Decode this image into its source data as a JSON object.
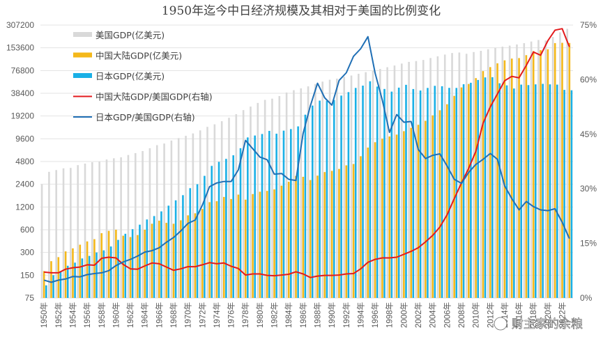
{
  "chart_data": {
    "type": "bar",
    "title": "1950年迄今中日经济规模及其相对于美国的比例变化",
    "left_axis": {
      "scale": "log2",
      "ticks": [
        "75",
        "150",
        "300",
        "600",
        "1200",
        "2400",
        "4800",
        "9600",
        "19200",
        "38400",
        "76800",
        "153600",
        "307200"
      ],
      "range": [
        75,
        307200
      ]
    },
    "right_axis": {
      "ticks": [
        "0%",
        "15%",
        "30%",
        "45%",
        "60%",
        "75%"
      ],
      "range": [
        0,
        75
      ]
    },
    "grid": true,
    "legend_position": "top-left",
    "x": [
      1950,
      1951,
      1952,
      1953,
      1954,
      1955,
      1956,
      1957,
      1958,
      1959,
      1960,
      1961,
      1962,
      1963,
      1964,
      1965,
      1966,
      1967,
      1968,
      1969,
      1970,
      1971,
      1972,
      1973,
      1974,
      1975,
      1976,
      1977,
      1978,
      1979,
      1980,
      1981,
      1982,
      1983,
      1984,
      1985,
      1986,
      1987,
      1988,
      1989,
      1990,
      1991,
      1992,
      1993,
      1994,
      1995,
      1996,
      1997,
      1998,
      1999,
      2000,
      2001,
      2002,
      2003,
      2004,
      2005,
      2006,
      2007,
      2008,
      2009,
      2010,
      2011,
      2012,
      2013,
      2014,
      2015,
      2016,
      2017,
      2018,
      2019,
      2020,
      2021,
      2022,
      2023
    ],
    "x_tick_labels": [
      "1950年",
      "1952年",
      "1954年",
      "1956年",
      "1958年",
      "1960年",
      "1962年",
      "1964年",
      "1966年",
      "1968年",
      "1970年",
      "1972年",
      "1974年",
      "1976年",
      "1978年",
      "1980年",
      "1982年",
      "1984年",
      "1986年",
      "1988年",
      "1990年",
      "1992年",
      "1994年",
      "1996年",
      "1998年",
      "2000年",
      "2002年",
      "2004年",
      "2006年",
      "2008年",
      "2010年",
      "2012年",
      "2014年",
      "2016年",
      "2018年",
      "2020年",
      "2022年"
    ],
    "series": [
      {
        "name": "美国GDP(亿美元)",
        "kind": "bar",
        "axis": "left",
        "color": "#d9d9d9",
        "values": [
          2400,
          3500,
          3700,
          3900,
          3950,
          4300,
          4500,
          4700,
          4800,
          5100,
          5300,
          5450,
          5850,
          6200,
          6600,
          7200,
          7900,
          8300,
          9100,
          9800,
          10500,
          11300,
          12400,
          13800,
          14900,
          16400,
          18200,
          20300,
          23000,
          25600,
          28600,
          31400,
          32600,
          35300,
          39300,
          42200,
          44600,
          47400,
          51000,
          54800,
          58000,
          60000,
          63400,
          66000,
          69600,
          73000,
          76400,
          80600,
          85000,
          89500,
          95000,
          100000,
          102500,
          106000,
          112500,
          118500,
          125000,
          131000,
          133000,
          128000,
          135000,
          140000,
          147000,
          153000,
          159000,
          164000,
          170000,
          177000,
          186000,
          195000,
          192000,
          214000,
          246000,
          274000
        ]
      },
      {
        "name": "中国大陆GDP(亿美元)",
        "kind": "bar",
        "axis": "left",
        "color": "#f4b81a",
        "values": [
          170,
          230,
          260,
          310,
          340,
          380,
          420,
          450,
          540,
          580,
          600,
          500,
          480,
          510,
          600,
          720,
          790,
          740,
          720,
          800,
          930,
          990,
          1130,
          1390,
          1430,
          1630,
          1530,
          1750,
          1500,
          1780,
          1910,
          1960,
          2050,
          2300,
          2590,
          3090,
          3010,
          2730,
          3120,
          3480,
          3610,
          3830,
          4270,
          4450,
          5640,
          7340,
          8640,
          9620,
          10300,
          10900,
          12100,
          13400,
          14700,
          16600,
          19600,
          22900,
          27500,
          35500,
          45900,
          51000,
          61000,
          75500,
          85300,
          95700,
          104800,
          110600,
          112300,
          122700,
          138900,
          142800,
          146900,
          177300,
          178800,
          178000
        ]
      },
      {
        "name": "日本GDP(亿美元)",
        "kind": "bar",
        "axis": "left",
        "color": "#1ab0e6",
        "values": [
          110,
          150,
          170,
          200,
          220,
          250,
          270,
          300,
          320,
          360,
          440,
          530,
          610,
          700,
          820,
          910,
          1050,
          1250,
          1470,
          1720,
          2130,
          2400,
          3100,
          4200,
          4750,
          5200,
          5800,
          7200,
          10000,
          10600,
          11100,
          12200,
          11200,
          12300,
          12900,
          14000,
          20000,
          26400,
          30700,
          30500,
          31300,
          35800,
          39800,
          45200,
          48500,
          55400,
          47100,
          43800,
          40400,
          45600,
          49700,
          43700,
          41800,
          45200,
          48200,
          47600,
          45300,
          45200,
          50600,
          52900,
          57600,
          62300,
          62700,
          52100,
          48900,
          44400,
          50000,
          49300,
          50400,
          51200,
          50400,
          50000,
          42600,
          42100
        ]
      },
      {
        "name": "中国大陆GDP/美国GDP(右轴)",
        "kind": "line",
        "axis": "right",
        "color": "#e31a1c",
        "values": [
          7.1,
          6.9,
          6.9,
          7.9,
          8.3,
          8.5,
          9.1,
          9.0,
          10.9,
          11.2,
          11.0,
          9.2,
          8.0,
          7.9,
          8.8,
          9.6,
          9.4,
          8.5,
          7.6,
          8.0,
          8.6,
          8.6,
          9.1,
          9.7,
          9.4,
          9.6,
          8.7,
          8.1,
          6.3,
          6.6,
          6.6,
          6.2,
          6.1,
          6.3,
          6.5,
          7.2,
          6.6,
          5.6,
          6.0,
          6.2,
          6.2,
          6.3,
          6.6,
          6.7,
          8.0,
          9.8,
          10.6,
          11.0,
          11.0,
          11.2,
          12.0,
          12.8,
          13.8,
          15.4,
          17.2,
          19.5,
          22.8,
          27.3,
          31.6,
          35.6,
          40.3,
          48.0,
          52.5,
          56.1,
          59.7,
          60.9,
          60.5,
          63.9,
          67.6,
          66.7,
          70.7,
          73.6,
          74.0,
          69.0
        ]
      },
      {
        "name": "日本GDP/美国GDP(右轴)",
        "kind": "line",
        "axis": "right",
        "color": "#1f6fb5",
        "values": [
          4.9,
          4.3,
          4.9,
          5.2,
          5.9,
          5.8,
          6.4,
          6.7,
          6.9,
          7.5,
          8.9,
          9.9,
          10.6,
          11.5,
          12.6,
          13.0,
          13.8,
          15.3,
          16.6,
          18.4,
          20.5,
          21.4,
          25.5,
          30.6,
          31.6,
          32.0,
          32.0,
          35.2,
          43.3,
          41.0,
          38.7,
          38.0,
          34.0,
          34.2,
          32.6,
          32.3,
          45.2,
          52.8,
          59.0,
          55.0,
          53.0,
          59.8,
          61.9,
          66.4,
          68.5,
          71.8,
          61.8,
          54.4,
          45.5,
          50.4,
          48.3,
          48.5,
          40.8,
          38.3,
          39.2,
          39.6,
          36.3,
          32.6,
          31.5,
          34.5,
          36.7,
          38.1,
          39.7,
          38.1,
          30.8,
          27.3,
          24.2,
          26.5,
          25.1,
          24.2,
          24.0,
          24.5,
          20.8,
          16.3
        ]
      }
    ]
  },
  "legend": [
    {
      "label": "美国GDP(亿美元)",
      "kind": "bar",
      "color": "#d9d9d9"
    },
    {
      "label": "中国大陆GDP(亿美元)",
      "kind": "bar",
      "color": "#f4b81a"
    },
    {
      "label": "日本GDP(亿美元)",
      "kind": "bar",
      "color": "#1ab0e6"
    },
    {
      "label": "中国大陆GDP/美国GDP(右轴)",
      "kind": "line",
      "color": "#e31a1c"
    },
    {
      "label": "日本GDP/美国GDP(右轴)",
      "kind": "line",
      "color": "#1f6fb5"
    }
  ],
  "watermark": "财主家的余粮"
}
